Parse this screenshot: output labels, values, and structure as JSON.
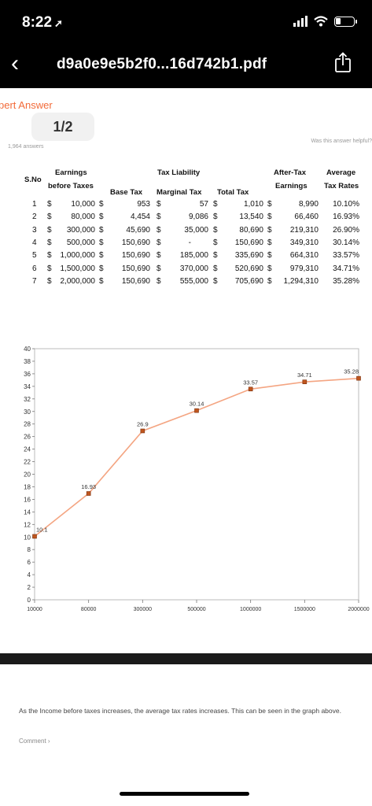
{
  "status_bar": {
    "time": "8:22",
    "location_icon": "location-arrow-icon",
    "signal_icon": "signal-bars-icon",
    "wifi_icon": "wifi-icon",
    "battery_icon": "battery-icon"
  },
  "header": {
    "back_icon": "chevron-left-icon",
    "filename": "d9a0e9e5b2f0...16d742b1.pdf",
    "share_icon": "share-icon"
  },
  "page": {
    "expert_fragment": "pert Answer",
    "pager": "1/2",
    "answers_count": "1,964 answers",
    "helpful_prompt": "Was this answer helpful?"
  },
  "table": {
    "headers": {
      "sno": "S.No",
      "earnings": "Earnings",
      "earnings2": "before Taxes",
      "tax_liability": "Tax Liability",
      "base_tax": "Base Tax",
      "marginal_tax": "Marginal Tax",
      "total_tax": "Total Tax",
      "after_tax": "After-Tax",
      "after_tax2": "Earnings",
      "avg": "Average",
      "avg2": "Tax Rates"
    },
    "rows": [
      {
        "no": "1",
        "earn": "10,000",
        "base": "953",
        "marg": "57",
        "total": "1,010",
        "after": "8,990",
        "rate": "10.10%"
      },
      {
        "no": "2",
        "earn": "80,000",
        "base": "4,454",
        "marg": "9,086",
        "total": "13,540",
        "after": "66,460",
        "rate": "16.93%"
      },
      {
        "no": "3",
        "earn": "300,000",
        "base": "45,690",
        "marg": "35,000",
        "total": "80,690",
        "after": "219,310",
        "rate": "26.90%"
      },
      {
        "no": "4",
        "earn": "500,000",
        "base": "150,690",
        "marg": "-",
        "total": "150,690",
        "after": "349,310",
        "rate": "30.14%"
      },
      {
        "no": "5",
        "earn": "1,000,000",
        "base": "150,690",
        "marg": "185,000",
        "total": "335,690",
        "after": "664,310",
        "rate": "33.57%"
      },
      {
        "no": "6",
        "earn": "1,500,000",
        "base": "150,690",
        "marg": "370,000",
        "total": "520,690",
        "after": "979,310",
        "rate": "34.71%"
      },
      {
        "no": "7",
        "earn": "2,000,000",
        "base": "150,690",
        "marg": "555,000",
        "total": "705,690",
        "after": "1,294,310",
        "rate": "35.28%"
      }
    ],
    "currency": "$"
  },
  "chart_data": {
    "type": "line",
    "categories": [
      "10000",
      "80000",
      "300000",
      "500000",
      "1000000",
      "1500000",
      "2000000"
    ],
    "values": [
      10.1,
      16.93,
      26.9,
      30.14,
      33.57,
      34.71,
      35.28
    ],
    "data_labels": [
      "10.1",
      "16.93",
      "26.9",
      "30.14",
      "33.57",
      "34.71",
      "35.28"
    ],
    "ylim": [
      0,
      40
    ],
    "yticks": [
      "0",
      "2",
      "4",
      "6",
      "8",
      "10",
      "12",
      "14",
      "16",
      "18",
      "20",
      "22",
      "24",
      "26",
      "28",
      "30",
      "32",
      "34",
      "36",
      "38",
      "40"
    ],
    "line_color": "#f4a582",
    "marker_color": "#c0561e",
    "title": "",
    "xlabel": "",
    "ylabel": ""
  },
  "explanation": "As the Income before taxes increases, the average tax rates increases. This can be seen in the graph above.",
  "comment_label": "Comment"
}
